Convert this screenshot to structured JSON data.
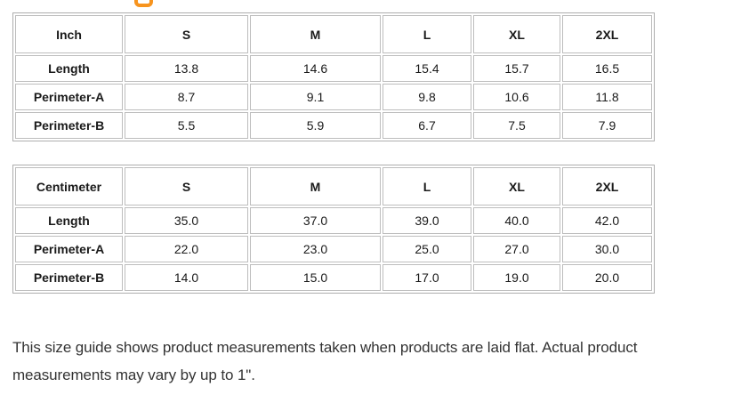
{
  "page": {
    "background": "#ffffff",
    "heading_fragment_color": "#f7941e"
  },
  "tables": [
    {
      "unit": "Inch",
      "sizes": [
        "S",
        "M",
        "L",
        "XL",
        "2XL"
      ],
      "rows": [
        {
          "label": "Length",
          "values": [
            "13.8",
            "14.6",
            "15.4",
            "15.7",
            "16.5"
          ]
        },
        {
          "label": "Perimeter-A",
          "values": [
            "8.7",
            "9.1",
            "9.8",
            "10.6",
            "11.8"
          ]
        },
        {
          "label": "Perimeter-B",
          "values": [
            "5.5",
            "5.9",
            "6.7",
            "7.5",
            "7.9"
          ]
        }
      ]
    },
    {
      "unit": "Centimeter",
      "sizes": [
        "S",
        "M",
        "L",
        "XL",
        "2XL"
      ],
      "rows": [
        {
          "label": "Length",
          "values": [
            "35.0",
            "37.0",
            "39.0",
            "40.0",
            "42.0"
          ]
        },
        {
          "label": "Perimeter-A",
          "values": [
            "22.0",
            "23.0",
            "25.0",
            "27.0",
            "30.0"
          ]
        },
        {
          "label": "Perimeter-B",
          "values": [
            "14.0",
            "15.0",
            "17.0",
            "19.0",
            "20.0"
          ]
        }
      ]
    }
  ],
  "note": "This size guide shows product measurements taken when products are laid flat. Actual product measurements may vary by up to 1\"."
}
